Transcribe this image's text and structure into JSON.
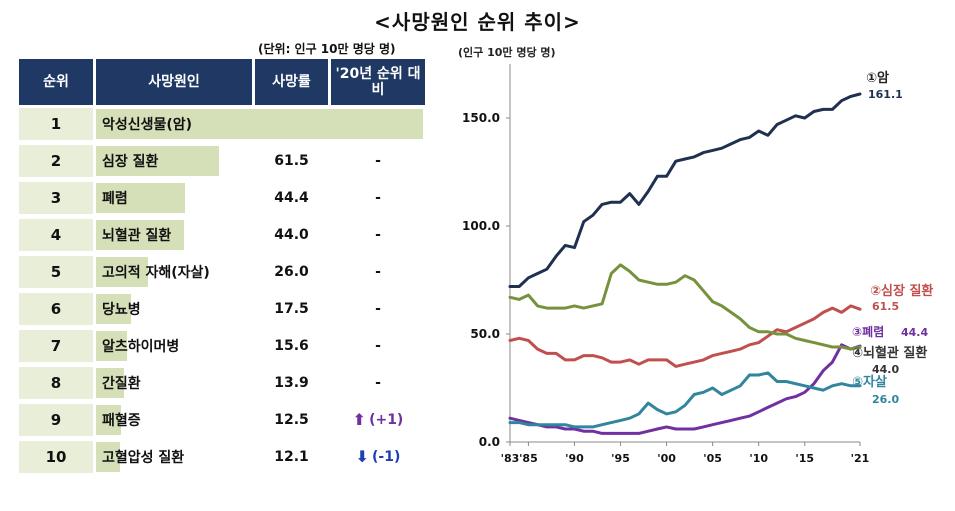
{
  "title": "<사망원인 순위 추이>",
  "unit_note": "(단위: 인구 10만 명당 명)",
  "table": {
    "headers": [
      "순위",
      "사망원인",
      "사망률",
      "'20년 순위 대비"
    ],
    "rows": [
      {
        "rank": "1",
        "cause": "악성신생물(암)",
        "rate": "161.1",
        "rate_value": 161.1,
        "change": "-",
        "dir": ""
      },
      {
        "rank": "2",
        "cause": "심장 질환",
        "rate": "61.5",
        "rate_value": 61.5,
        "change": "-",
        "dir": ""
      },
      {
        "rank": "3",
        "cause": "폐렴",
        "rate": "44.4",
        "rate_value": 44.4,
        "change": "-",
        "dir": ""
      },
      {
        "rank": "4",
        "cause": "뇌혈관 질환",
        "rate": "44.0",
        "rate_value": 44.0,
        "change": "-",
        "dir": ""
      },
      {
        "rank": "5",
        "cause": "고의적 자해(자살)",
        "rate": "26.0",
        "rate_value": 26.0,
        "change": "-",
        "dir": ""
      },
      {
        "rank": "6",
        "cause": "당뇨병",
        "rate": "17.5",
        "rate_value": 17.5,
        "change": "-",
        "dir": ""
      },
      {
        "rank": "7",
        "cause": "알츠하이머병",
        "rate": "15.6",
        "rate_value": 15.6,
        "change": "-",
        "dir": ""
      },
      {
        "rank": "8",
        "cause": "간질환",
        "rate": "13.9",
        "rate_value": 13.9,
        "change": "-",
        "dir": ""
      },
      {
        "rank": "9",
        "cause": "패혈증",
        "rate": "12.5",
        "rate_value": 12.5,
        "change": "(+1)",
        "dir": "up"
      },
      {
        "rank": "10",
        "cause": "고혈압성 질환",
        "rate": "12.1",
        "rate_value": 12.1,
        "change": "(-1)",
        "dir": "down"
      }
    ]
  },
  "chart_data": {
    "type": "line",
    "ylabel": "(인구 10만 명당 명)",
    "ylim": [
      0,
      175
    ],
    "yticks": [
      0,
      50,
      100,
      150
    ],
    "ytick_labels": [
      "0.0",
      "50.0",
      "100.0",
      "150.0"
    ],
    "xlim": [
      1983,
      2021
    ],
    "xticks": [
      1983,
      1985,
      1990,
      1995,
      2000,
      2005,
      2010,
      2015,
      2021
    ],
    "xtick_labels": [
      "'83",
      "'85",
      "'90",
      "'95",
      "'00",
      "'05",
      "'10",
      "'15",
      "'21"
    ],
    "x": [
      1983,
      1984,
      1985,
      1986,
      1987,
      1988,
      1989,
      1990,
      1991,
      1992,
      1993,
      1994,
      1995,
      1996,
      1997,
      1998,
      1999,
      2000,
      2001,
      2002,
      2003,
      2004,
      2005,
      2006,
      2007,
      2008,
      2009,
      2010,
      2011,
      2012,
      2013,
      2014,
      2015,
      2016,
      2017,
      2018,
      2019,
      2020,
      2021
    ],
    "series": [
      {
        "name": "①암",
        "value_label": "161.1",
        "color": "#1f3050",
        "values": [
          72,
          72,
          76,
          78,
          80,
          86,
          91,
          90,
          102,
          105,
          110,
          111,
          111,
          115,
          110,
          116,
          123,
          123,
          130,
          131,
          132,
          134,
          135,
          136,
          138,
          140,
          141,
          144,
          142,
          147,
          149,
          151,
          150,
          153,
          154,
          154,
          158,
          160,
          161.1
        ]
      },
      {
        "name": "②심장 질환",
        "value_label": "61.5",
        "color": "#c0504d",
        "values": [
          47,
          48,
          47,
          43,
          41,
          41,
          38,
          38,
          40,
          40,
          39,
          37,
          37,
          38,
          36,
          38,
          38,
          38,
          35,
          36,
          37,
          38,
          40,
          41,
          42,
          43,
          45,
          46,
          49,
          52,
          51,
          53,
          55,
          57,
          60,
          62,
          60,
          63,
          61.5
        ]
      },
      {
        "name": "③폐렴",
        "value_label": "44.4",
        "color": "#7030a0",
        "values": [
          11,
          10,
          9,
          8,
          7,
          7,
          6,
          6,
          5,
          5,
          4,
          4,
          4,
          4,
          4,
          5,
          6,
          7,
          6,
          6,
          6,
          7,
          8,
          9,
          10,
          11,
          12,
          14,
          16,
          18,
          20,
          21,
          23,
          27,
          33,
          37,
          45,
          43,
          44.4
        ]
      },
      {
        "name": "④뇌혈관 질환",
        "value_label": "44.0",
        "color": "#76923c",
        "values": [
          67,
          66,
          68,
          63,
          62,
          62,
          62,
          63,
          62,
          63,
          64,
          78,
          82,
          79,
          75,
          74,
          73,
          73,
          74,
          77,
          75,
          70,
          65,
          63,
          60,
          57,
          53,
          51,
          51,
          50,
          50,
          48,
          47,
          46,
          45,
          44,
          44,
          43,
          44.0
        ]
      },
      {
        "name": "⑤자살",
        "value_label": "26.0",
        "color": "#31859c",
        "values": [
          9,
          9,
          8,
          8,
          8,
          8,
          8,
          7,
          7,
          7,
          8,
          9,
          10,
          11,
          13,
          18,
          15,
          13,
          14,
          17,
          22,
          23,
          25,
          22,
          24,
          26,
          31,
          31,
          32,
          28,
          28,
          27,
          26,
          25,
          24,
          26,
          27,
          26,
          26.0
        ]
      }
    ]
  }
}
